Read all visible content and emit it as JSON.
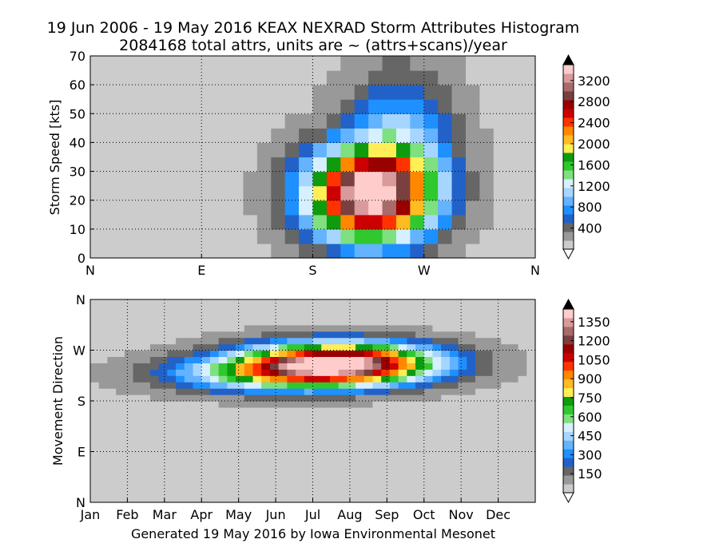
{
  "title": {
    "line1": "19 Jun 2006 - 19 May 2016 KEAX NEXRAD Storm Attributes Histogram",
    "line2": "2084168 total attrs, units are ~ (attrs+scans)/year"
  },
  "footer": "Generated 19 May 2016 by Iowa Environmental Mesonet",
  "colors": {
    "colormap": [
      "#ffffff",
      "#cccccc",
      "#999999",
      "#666666",
      "#2262c8",
      "#1e90ff",
      "#63b3ff",
      "#a6d6ff",
      "#d6f0ff",
      "#7fe07f",
      "#2fc82f",
      "#0e9b0e",
      "#ffee55",
      "#ffbb22",
      "#ff8800",
      "#ff3300",
      "#cc0000",
      "#990000",
      "#7a3f3f",
      "#a86a6a",
      "#d89a9a",
      "#ffcccc"
    ]
  },
  "chart_data": [
    {
      "type": "heatmap",
      "ylabel": "Storm Speed [kts]",
      "x_tick_labels": [
        "N",
        "E",
        "S",
        "W",
        "N"
      ],
      "y_ticks": [
        0,
        10,
        20,
        30,
        40,
        50,
        60,
        70
      ],
      "ylim": [
        0,
        70
      ],
      "xlim": [
        0,
        360
      ],
      "grid": true,
      "x_bin_size_deg": 11.25,
      "y_bin_size_kts": 5,
      "colorbar": {
        "ticks": [
          400,
          800,
          1200,
          1600,
          2000,
          2400,
          2800,
          3200
        ],
        "max": 3500,
        "extend": "both"
      },
      "hotspots": [
        {
          "x": 225,
          "y": 22,
          "sx": 35,
          "sy": 11,
          "peak": 3300
        },
        {
          "x": 250,
          "y": 40,
          "sx": 30,
          "sy": 18,
          "peak": 800
        }
      ],
      "background_level": 110
    },
    {
      "type": "heatmap",
      "ylabel": "Movement Direction",
      "x_tick_labels": [
        "Jan",
        "Feb",
        "Mar",
        "Apr",
        "May",
        "Jun",
        "Jul",
        "Aug",
        "Sep",
        "Oct",
        "Nov",
        "Dec"
      ],
      "y_tick_labels": [
        "N",
        "E",
        "S",
        "W",
        "N"
      ],
      "xlim": [
        0,
        365
      ],
      "ylim": [
        0,
        360
      ],
      "grid": true,
      "x_bin_size_days": 7,
      "y_bin_size_deg": 11.25,
      "colorbar": {
        "ticks": [
          150,
          300,
          450,
          600,
          750,
          900,
          1050,
          1200,
          1350
        ],
        "max": 1450,
        "extend": "both"
      },
      "hotspots": [
        {
          "x": 205,
          "y": 248,
          "sx": 55,
          "sy": 25,
          "peak": 1300
        },
        {
          "x": 145,
          "y": 228,
          "sx": 60,
          "sy": 22,
          "peak": 500
        }
      ],
      "background_level": 45
    }
  ]
}
